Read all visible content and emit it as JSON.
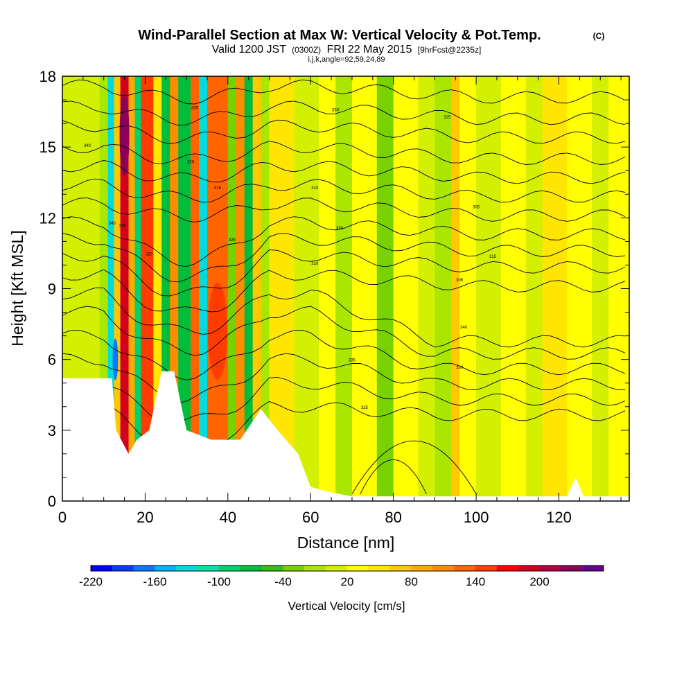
{
  "chart_data": {
    "type": "heatmap",
    "title": "Wind-Parallel Section at Max W: Vertical Velocity & Pot.Temp.",
    "title_mark": "(C)",
    "subtitle": {
      "valid": "Valid 1200 JST",
      "utc": "(0300Z)",
      "date": "FRI 22 May 2015",
      "fcst": "[9hrFcst@2235z]"
    },
    "grid_info": "i,j,k,angle=92,59,24,89",
    "xlabel": "Distance [nm]",
    "ylabel": "Height [Kft MSL]",
    "xlim": [
      0,
      137
    ],
    "ylim": [
      0,
      18
    ],
    "x_ticks": [
      0,
      20,
      40,
      60,
      80,
      100,
      120
    ],
    "y_ticks": [
      0,
      3,
      6,
      9,
      12,
      15,
      18
    ],
    "colorbar": {
      "label": "Vertical Velocity [cm/s]",
      "tick_labels": [
        "-220",
        "-160",
        "-100",
        "-40",
        "20",
        "80",
        "140",
        "200"
      ],
      "colors": [
        "#0000ff",
        "#0a3cff",
        "#0a78ff",
        "#00b4ff",
        "#00dcdc",
        "#00e6a0",
        "#00d26e",
        "#00be3c",
        "#32be14",
        "#78d200",
        "#aae600",
        "#d2f000",
        "#ffff00",
        "#ffe600",
        "#ffc800",
        "#ffaa00",
        "#ff8c00",
        "#ff6400",
        "#ff3c00",
        "#ff0000",
        "#d2001e",
        "#b4003c",
        "#8c005a",
        "#64008c"
      ]
    },
    "terrain_kft": [
      [
        0,
        5.2
      ],
      [
        12,
        5.2
      ],
      [
        13,
        3.0
      ],
      [
        16,
        2.0
      ],
      [
        18,
        2.6
      ],
      [
        21,
        3.0
      ],
      [
        24,
        5.5
      ],
      [
        27,
        5.5
      ],
      [
        30,
        3.0
      ],
      [
        36,
        2.6
      ],
      [
        43,
        2.6
      ],
      [
        48,
        3.9
      ],
      [
        52,
        3.0
      ],
      [
        57,
        2.0
      ],
      [
        60,
        0.6
      ],
      [
        64,
        0.4
      ],
      [
        70,
        0.2
      ],
      [
        122,
        0.2
      ],
      [
        124,
        1.0
      ],
      [
        126,
        0.2
      ],
      [
        137,
        0.2
      ]
    ],
    "wmax_band_x": [
      14,
      20,
      27,
      33,
      38,
      44,
      50
    ],
    "contour_labels": [
      "340",
      "335",
      "330",
      "325",
      "320",
      "315",
      "310",
      "305"
    ]
  }
}
